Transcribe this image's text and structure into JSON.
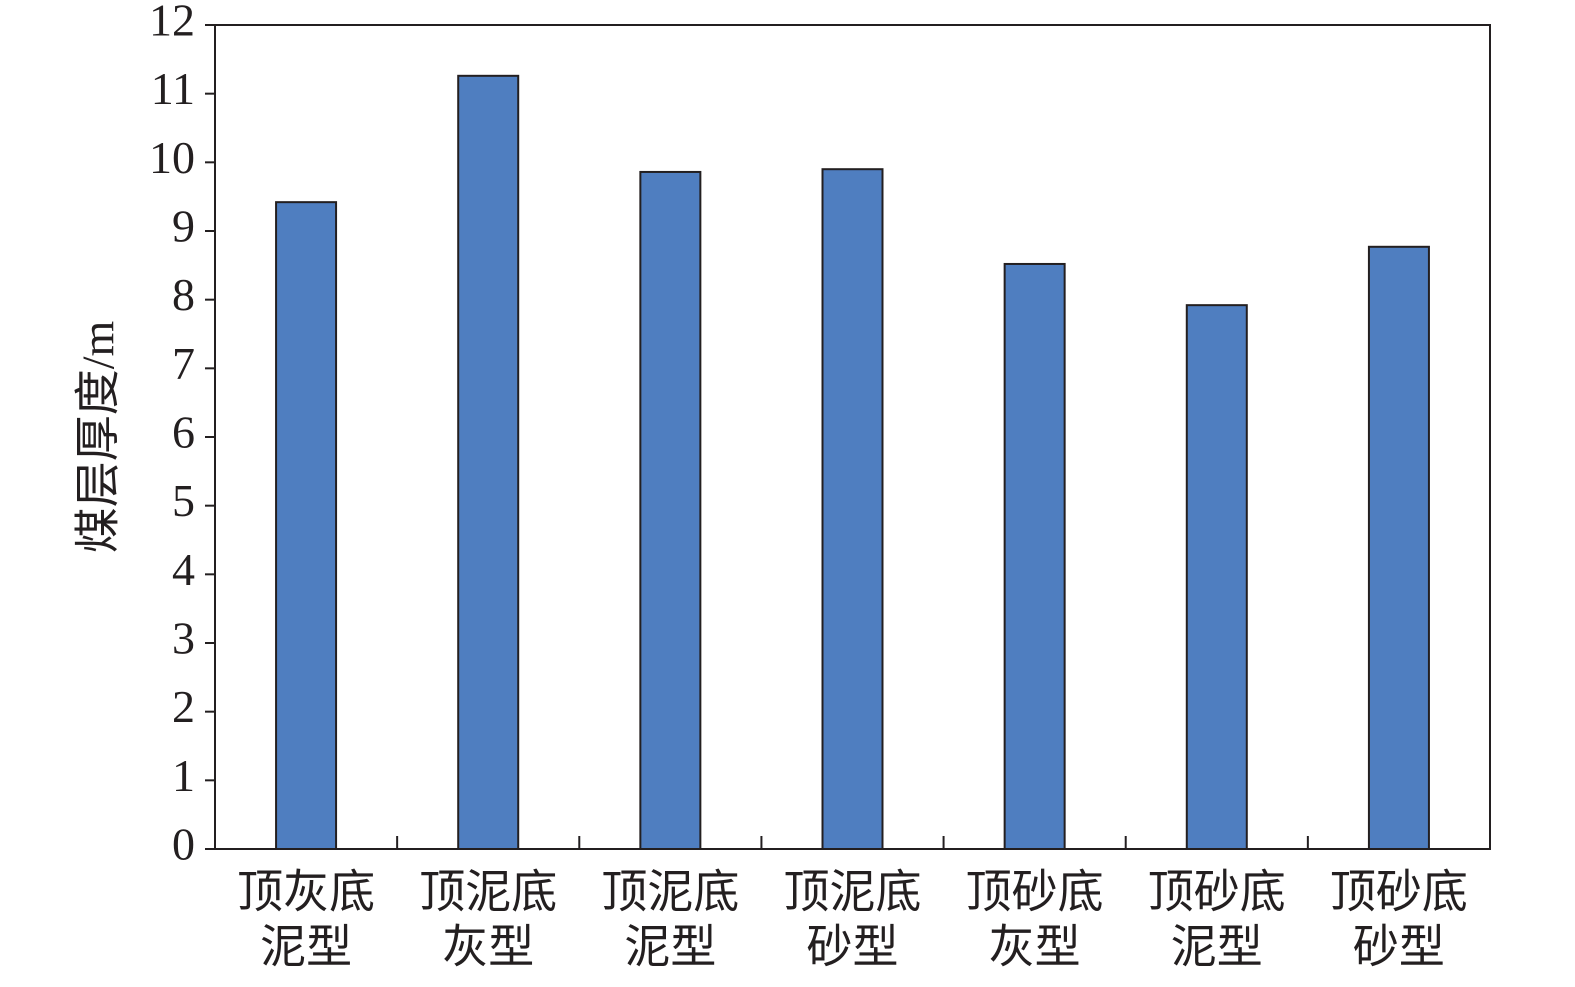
{
  "chart_data": {
    "type": "bar",
    "y_label": "煤层厚度/m",
    "categories": [
      [
        "顶灰底",
        "泥型"
      ],
      [
        "顶泥底",
        "灰型"
      ],
      [
        "顶泥底",
        "泥型"
      ],
      [
        "顶泥底",
        "砂型"
      ],
      [
        "顶砂底",
        "灰型"
      ],
      [
        "顶砂底",
        "泥型"
      ],
      [
        "顶砂底",
        "砂型"
      ]
    ],
    "values": [
      9.42,
      11.26,
      9.86,
      9.9,
      8.52,
      7.92,
      8.77
    ],
    "color": "#4f7ec0",
    "ylim": [
      0,
      12
    ],
    "yticks": [
      0,
      1,
      2,
      3,
      4,
      5,
      6,
      7,
      8,
      9,
      10,
      11,
      12
    ],
    "grid": false
  }
}
